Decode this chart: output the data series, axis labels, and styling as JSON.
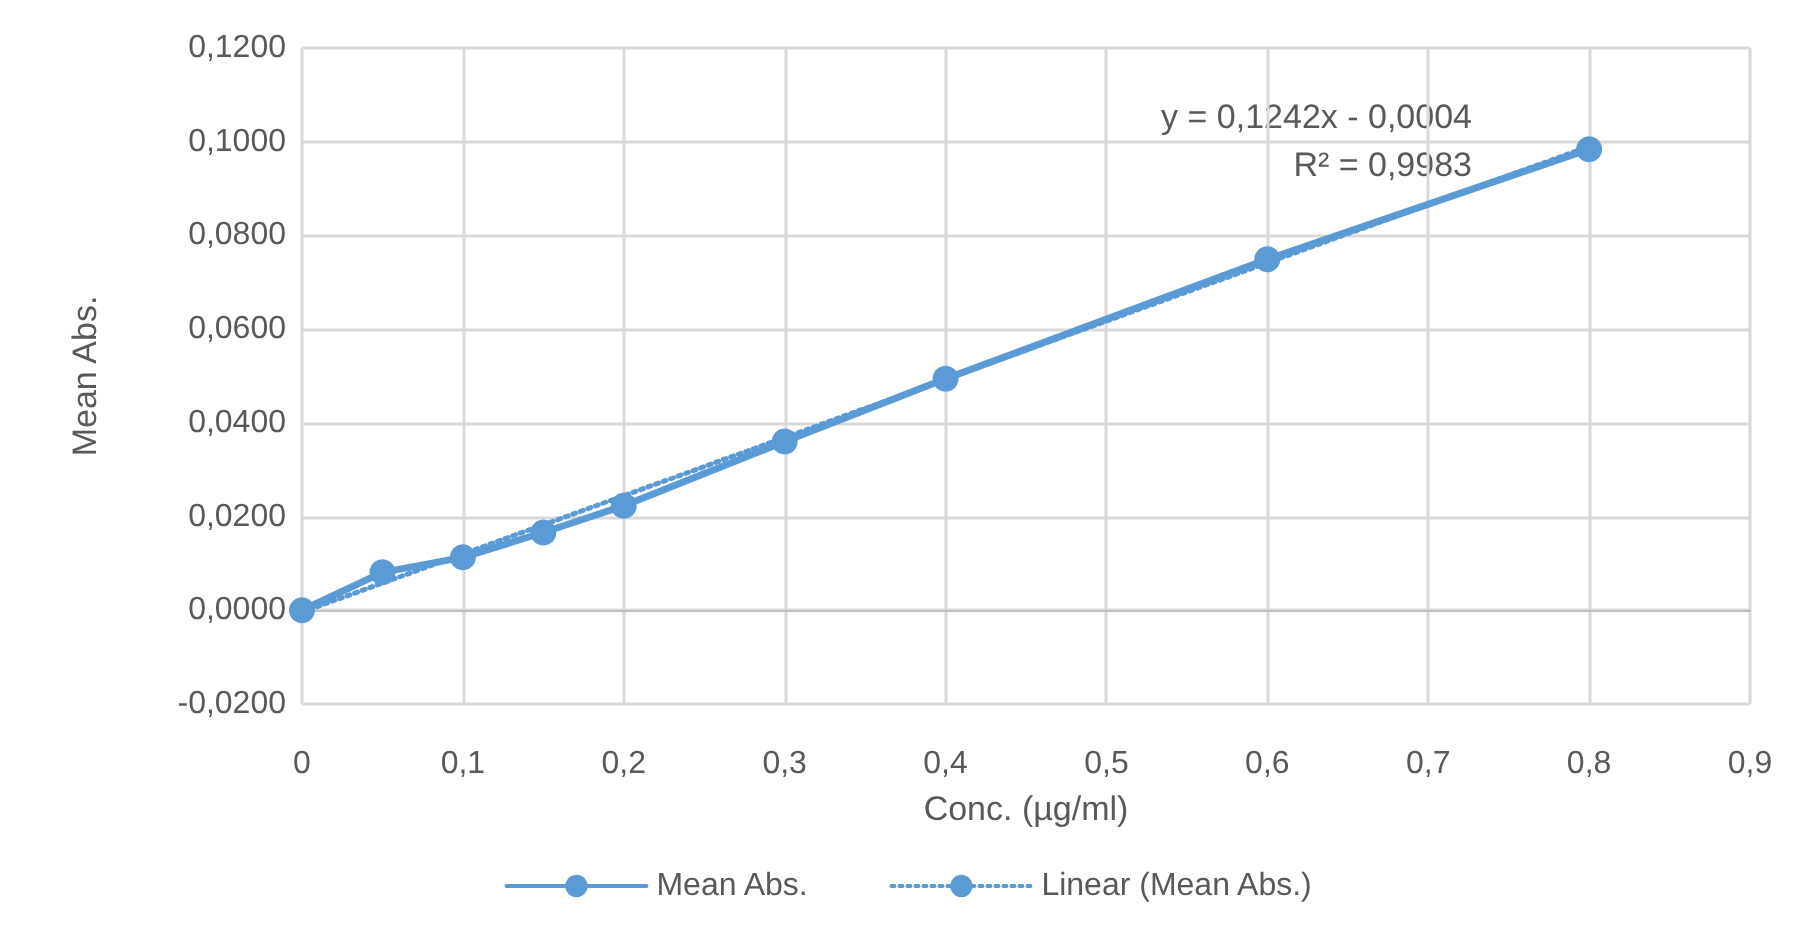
{
  "chart_data": {
    "type": "line",
    "xlabel": "Conc. (µg/ml)",
    "ylabel": "Mean Abs.",
    "x": [
      0,
      0.05,
      0.1,
      0.15,
      0.2,
      0.3,
      0.4,
      0.6,
      0.8
    ],
    "series": [
      {
        "name": "Mean Abs.",
        "color": "#5b9bd5",
        "values": [
          0,
          0.0081,
          0.0113,
          0.0166,
          0.0223,
          0.036,
          0.0494,
          0.0749,
          0.0984
        ],
        "marker": "circle",
        "line_style": "solid"
      },
      {
        "name": "Linear (Mean Abs.)",
        "color": "#5b9bd5",
        "x": [
          0,
          0.8
        ],
        "values": [
          -0.0004,
          0.099
        ],
        "marker": "none",
        "line_style": "dotted"
      }
    ],
    "annotations": [
      "y = 0,1242x - 0,0004",
      "R² = 0,9983"
    ],
    "xlim": [
      0,
      0.9
    ],
    "xticks": [
      {
        "value": 0,
        "label": "0"
      },
      {
        "value": 0.1,
        "label": "0,1"
      },
      {
        "value": 0.2,
        "label": "0,2"
      },
      {
        "value": 0.3,
        "label": "0,3"
      },
      {
        "value": 0.4,
        "label": "0,4"
      },
      {
        "value": 0.5,
        "label": "0,5"
      },
      {
        "value": 0.6,
        "label": "0,6"
      },
      {
        "value": 0.7,
        "label": "0,7"
      },
      {
        "value": 0.8,
        "label": "0,8"
      },
      {
        "value": 0.9,
        "label": "0,9"
      }
    ],
    "ylim": [
      -0.02,
      0.12
    ],
    "yticks": [
      {
        "value": -0.02,
        "label": "-0,0200"
      },
      {
        "value": 0,
        "label": "0,0000"
      },
      {
        "value": 0.02,
        "label": "0,0200"
      },
      {
        "value": 0.04,
        "label": "0,0400"
      },
      {
        "value": 0.06,
        "label": "0,0600"
      },
      {
        "value": 0.08,
        "label": "0,0800"
      },
      {
        "value": 0.1,
        "label": "0,1000"
      },
      {
        "value": 0.12,
        "label": "0,1200"
      }
    ],
    "grid": true,
    "legend": "bottom"
  }
}
